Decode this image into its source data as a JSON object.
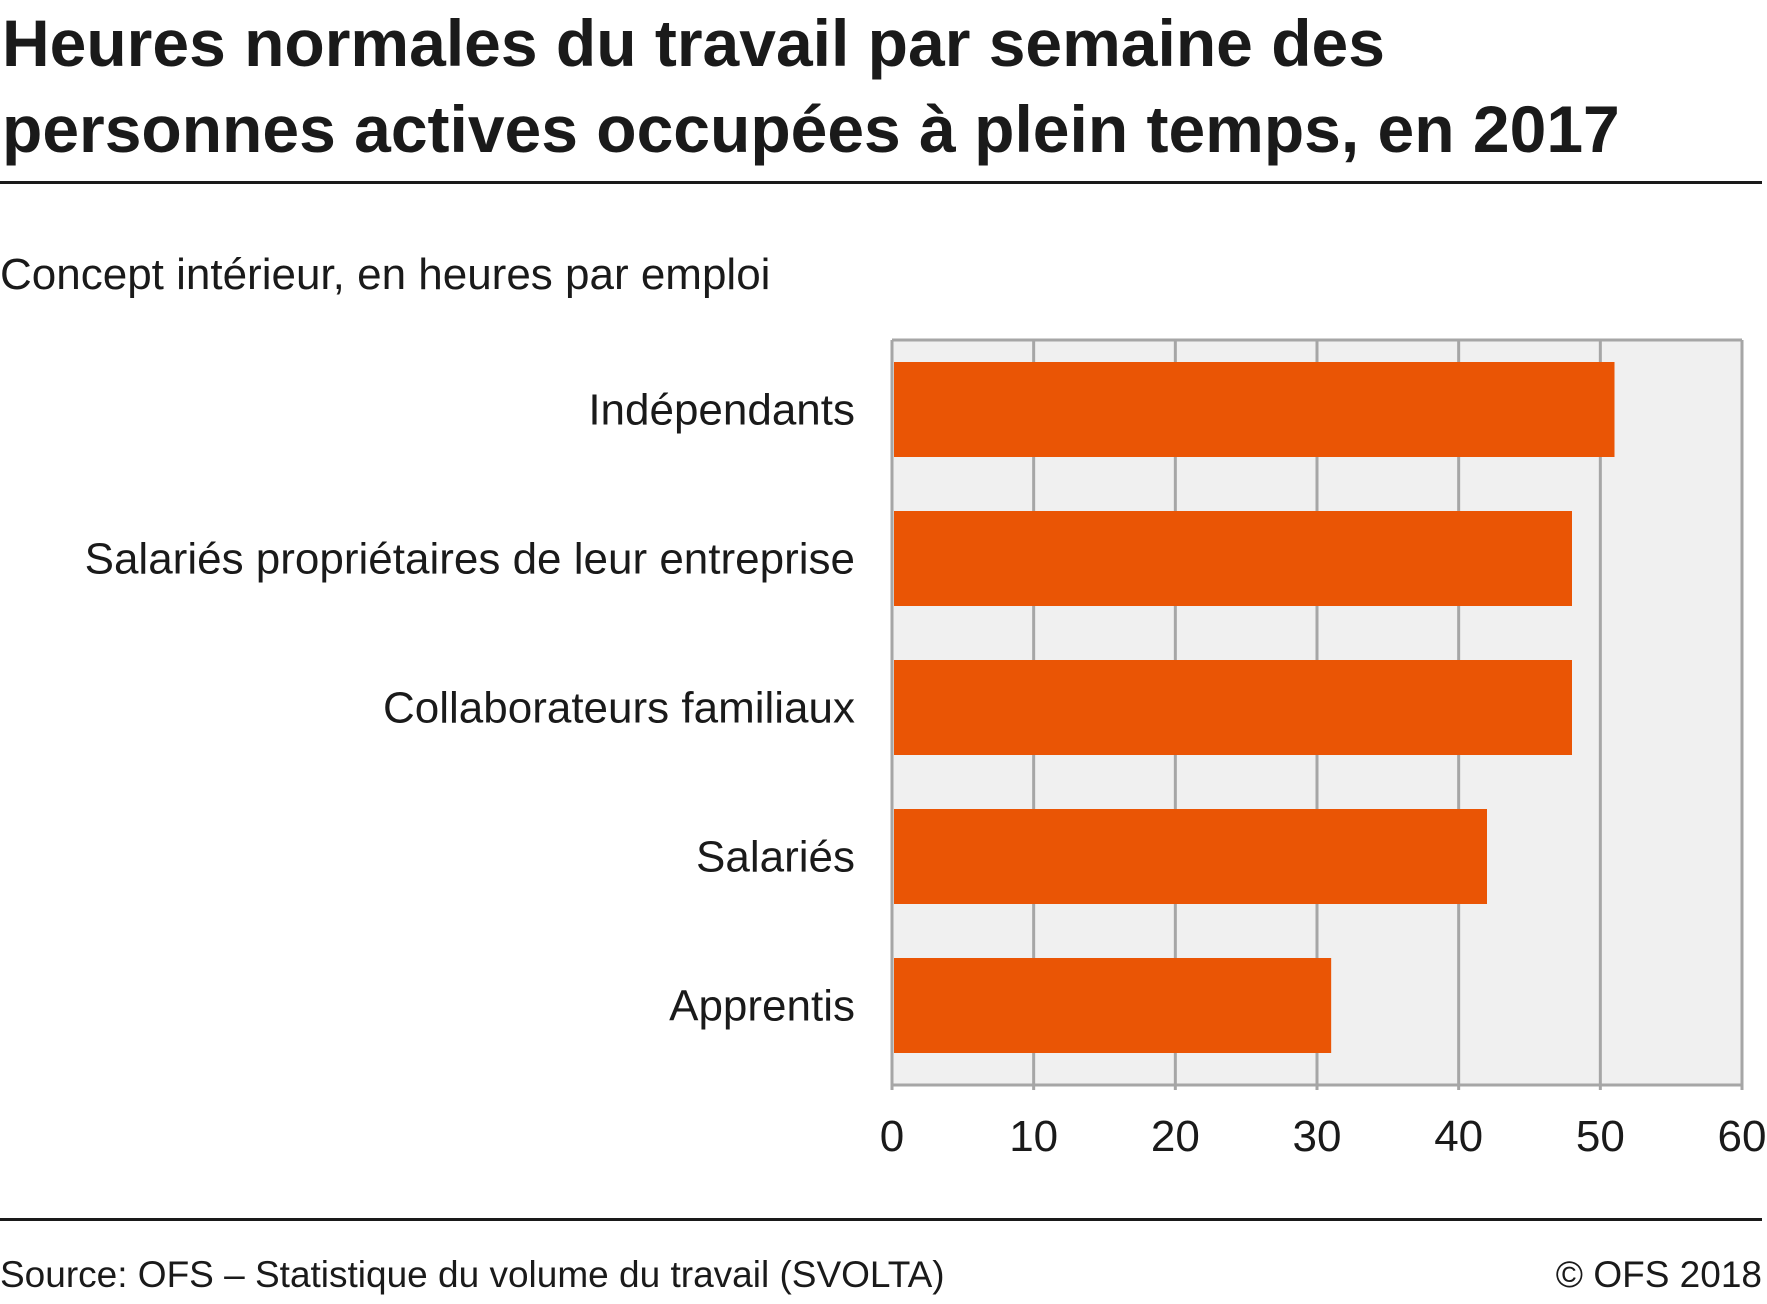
{
  "title": "Heures normales du travail par semaine des personnes actives occupées à plein temps, en 2017",
  "subtitle": "Concept intérieur, en heures par emploi",
  "source": "Source: OFS – Statistique du volume du travail (SVOLTA)",
  "copyright": "© OFS 2018",
  "colors": {
    "bar": "#ea5505",
    "plot_background": "#f0f0f0",
    "grid": "#a6a6a6",
    "text": "#1a1a1a"
  },
  "chart_data": {
    "type": "bar",
    "orientation": "horizontal",
    "categories": [
      "Indépendants",
      "Salariés propriétaires de leur entreprise",
      "Collaborateurs familiaux",
      "Salariés",
      "Apprentis"
    ],
    "values": [
      51,
      48,
      48,
      42,
      31
    ],
    "title": "Heures normales du travail par semaine des personnes actives occupées à plein temps, en 2017",
    "xlabel": "",
    "ylabel": "",
    "xlim": [
      0,
      60
    ],
    "x_ticks": [
      "0",
      "10",
      "20",
      "30",
      "40",
      "50",
      "60"
    ],
    "grid": true,
    "legend": "none"
  }
}
